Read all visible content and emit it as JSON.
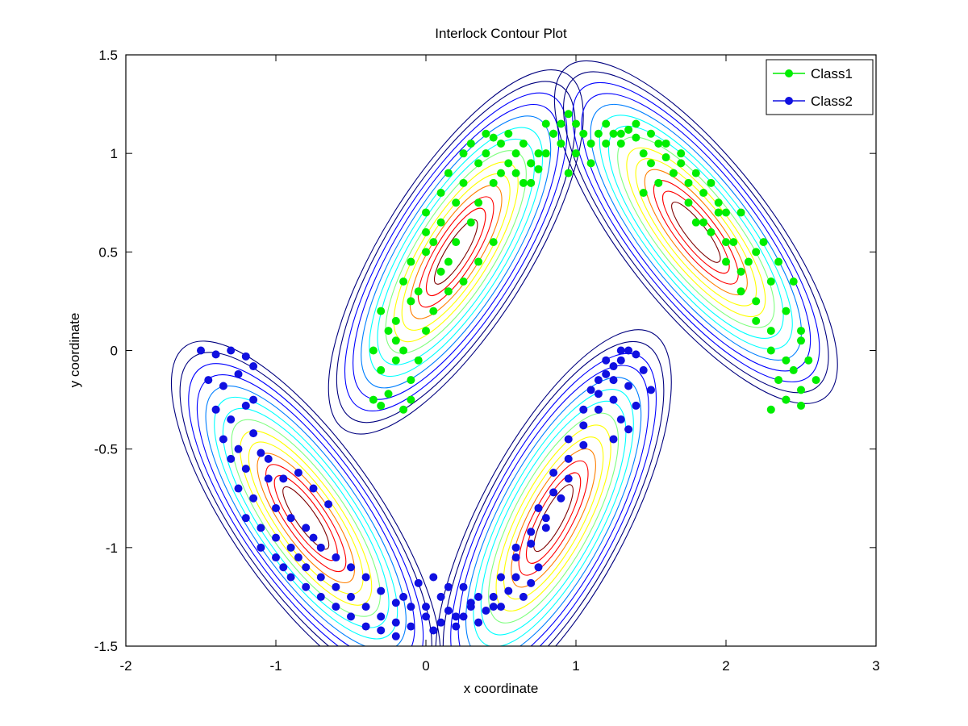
{
  "chart_data": {
    "type": "scatter",
    "title": "Interlock Contour Plot",
    "xlabel": "x coordinate",
    "ylabel": "y coordinate",
    "xlim": [
      -2,
      3
    ],
    "ylim": [
      -1.5,
      1.5
    ],
    "xticks": [
      -2,
      -1,
      0,
      1,
      2,
      3
    ],
    "yticks": [
      -1.5,
      -1,
      -0.5,
      0,
      0.5,
      1,
      1.5
    ],
    "xtick_labels": [
      "-2",
      "-1",
      "0",
      "1",
      "2",
      "3"
    ],
    "ytick_labels": [
      "-1.5",
      "-1",
      "-0.5",
      "0",
      "0.5",
      "1",
      "1.5"
    ],
    "grid": false,
    "legend_position": "top-right",
    "legend": [
      {
        "name": "Class1",
        "color": "#00ee00"
      },
      {
        "name": "Class2",
        "color": "#1010e0"
      }
    ],
    "contour_colormap": [
      "#00007f",
      "#0000ff",
      "#007fff",
      "#00ffff",
      "#7fff7f",
      "#ffff00",
      "#ff7f00",
      "#ff0000",
      "#7f0000"
    ],
    "contour_centers": [
      {
        "x": 0.2,
        "y": 0.5,
        "angle_deg": 58
      },
      {
        "x": 1.8,
        "y": 0.6,
        "angle_deg": -52
      },
      {
        "x": -0.8,
        "y": -0.85,
        "angle_deg": -55
      },
      {
        "x": 0.85,
        "y": -0.85,
        "angle_deg": 62
      }
    ],
    "series": [
      {
        "name": "Class1",
        "color": "#00ee00",
        "x": [
          -0.35,
          -0.3,
          -0.25,
          -0.15,
          -0.1,
          -0.3,
          -0.2,
          -0.1,
          -0.2,
          -0.35,
          -0.25,
          -0.15,
          -0.05,
          -0.3,
          -0.2,
          -0.1,
          0.0,
          -0.15,
          -0.05,
          0.05,
          -0.1,
          0.0,
          0.1,
          0.0,
          0.05,
          0.15,
          0.0,
          0.1,
          0.2,
          0.1,
          0.2,
          0.3,
          0.15,
          0.25,
          0.35,
          0.25,
          0.35,
          0.45,
          0.3,
          0.4,
          0.5,
          0.4,
          0.5,
          0.55,
          0.6,
          0.45,
          0.55,
          0.65,
          0.7,
          0.6,
          0.7,
          0.75,
          0.8,
          0.85,
          0.9,
          0.95,
          1.0,
          1.05,
          1.1,
          1.15,
          1.2,
          1.25,
          1.3,
          1.35,
          1.4,
          1.45,
          1.5,
          1.55,
          1.6,
          1.65,
          1.7,
          1.75,
          1.8,
          1.85,
          1.9,
          1.95,
          2.0,
          1.8,
          1.9,
          2.0,
          2.1,
          2.0,
          2.1,
          2.2,
          2.1,
          2.2,
          2.3,
          2.2,
          2.3,
          2.4,
          2.3,
          2.4,
          2.5,
          2.35,
          2.45,
          2.55,
          2.4,
          2.5,
          2.6,
          2.3,
          2.4,
          2.5,
          2.25,
          2.35,
          2.45,
          2.5,
          1.7,
          1.6,
          1.5,
          1.4,
          1.3,
          1.2,
          1.1,
          1.0,
          0.95,
          0.9,
          0.85,
          0.8,
          0.75,
          0.7,
          0.65,
          1.45,
          1.55,
          1.65,
          1.75,
          1.85,
          1.95,
          2.05,
          2.15,
          0.35,
          0.45,
          0.15,
          0.25
        ],
        "y": [
          -0.25,
          -0.28,
          -0.22,
          -0.3,
          -0.25,
          -0.1,
          -0.05,
          -0.15,
          0.05,
          0.0,
          0.1,
          0.0,
          -0.05,
          0.2,
          0.15,
          0.25,
          0.1,
          0.35,
          0.3,
          0.2,
          0.45,
          0.5,
          0.4,
          0.6,
          0.55,
          0.45,
          0.7,
          0.65,
          0.55,
          0.8,
          0.75,
          0.65,
          0.9,
          0.85,
          0.75,
          1.0,
          0.95,
          0.85,
          1.05,
          1.0,
          0.9,
          1.1,
          1.05,
          0.95,
          1.0,
          1.08,
          1.1,
          1.05,
          0.95,
          0.9,
          0.85,
          0.92,
          1.0,
          1.1,
          1.15,
          1.2,
          1.15,
          1.1,
          1.05,
          1.1,
          1.15,
          1.1,
          1.05,
          1.12,
          1.08,
          1.0,
          0.95,
          1.05,
          0.98,
          0.9,
          0.95,
          0.85,
          0.9,
          0.8,
          0.85,
          0.75,
          0.7,
          0.65,
          0.6,
          0.55,
          0.7,
          0.45,
          0.4,
          0.5,
          0.3,
          0.25,
          0.35,
          0.15,
          0.1,
          0.2,
          0.0,
          -0.05,
          0.05,
          -0.15,
          -0.1,
          -0.05,
          -0.25,
          -0.2,
          -0.15,
          -0.3,
          -0.25,
          -0.28,
          0.55,
          0.45,
          0.35,
          0.1,
          1.0,
          1.05,
          1.1,
          1.15,
          1.1,
          1.05,
          0.95,
          1.0,
          0.9,
          1.05,
          1.1,
          1.15,
          1.0,
          0.95,
          0.85,
          0.8,
          0.85,
          0.9,
          0.75,
          0.65,
          0.7,
          0.55,
          0.45,
          0.45,
          0.55,
          0.3,
          0.35
        ]
      },
      {
        "name": "Class2",
        "color": "#1010e0",
        "x": [
          -1.5,
          -1.4,
          -1.3,
          -1.2,
          -1.15,
          -1.45,
          -1.35,
          -1.25,
          -1.15,
          -1.4,
          -1.3,
          -1.2,
          -1.35,
          -1.25,
          -1.15,
          -1.3,
          -1.2,
          -1.1,
          -1.25,
          -1.15,
          -1.05,
          -1.2,
          -1.1,
          -1.0,
          -1.1,
          -1.0,
          -0.9,
          -1.0,
          -0.9,
          -0.8,
          -0.95,
          -0.85,
          -0.75,
          -0.9,
          -0.8,
          -0.7,
          -0.8,
          -0.7,
          -0.6,
          -0.7,
          -0.6,
          -0.5,
          -0.6,
          -0.5,
          -0.4,
          -0.5,
          -0.4,
          -0.3,
          -0.4,
          -0.3,
          -0.2,
          -0.3,
          -0.2,
          -0.1,
          -0.2,
          -0.1,
          0.0,
          0.05,
          0.1,
          0.15,
          0.2,
          0.25,
          0.3,
          0.35,
          0.4,
          0.45,
          0.5,
          0.55,
          0.6,
          0.65,
          0.7,
          0.75,
          0.5,
          0.6,
          0.7,
          0.8,
          0.6,
          0.7,
          0.8,
          0.9,
          0.75,
          0.85,
          0.95,
          0.85,
          0.95,
          1.05,
          0.95,
          1.05,
          1.15,
          1.05,
          1.15,
          1.25,
          1.1,
          1.2,
          1.3,
          1.15,
          1.25,
          1.35,
          1.2,
          1.3,
          1.4,
          1.25,
          1.35,
          1.45,
          1.3,
          1.4,
          1.5,
          1.25,
          1.35,
          0.15,
          0.05,
          -0.05,
          -0.15,
          0.25,
          0.35,
          0.45,
          -0.85,
          -0.75,
          -0.65,
          -1.05,
          -0.95,
          0.0,
          0.1,
          0.2,
          0.3
        ],
        "y": [
          0.0,
          -0.02,
          0.0,
          -0.03,
          -0.08,
          -0.15,
          -0.18,
          -0.12,
          -0.25,
          -0.3,
          -0.35,
          -0.28,
          -0.45,
          -0.5,
          -0.42,
          -0.55,
          -0.6,
          -0.52,
          -0.7,
          -0.75,
          -0.65,
          -0.85,
          -0.9,
          -0.8,
          -1.0,
          -0.95,
          -0.85,
          -1.05,
          -1.0,
          -0.9,
          -1.1,
          -1.05,
          -0.95,
          -1.15,
          -1.1,
          -1.0,
          -1.2,
          -1.15,
          -1.05,
          -1.25,
          -1.2,
          -1.1,
          -1.3,
          -1.25,
          -1.15,
          -1.35,
          -1.3,
          -1.22,
          -1.4,
          -1.35,
          -1.28,
          -1.42,
          -1.38,
          -1.3,
          -1.45,
          -1.4,
          -1.35,
          -1.42,
          -1.38,
          -1.32,
          -1.4,
          -1.35,
          -1.28,
          -1.38,
          -1.32,
          -1.25,
          -1.3,
          -1.22,
          -1.15,
          -1.25,
          -1.18,
          -1.1,
          -1.15,
          -1.05,
          -0.98,
          -0.9,
          -1.0,
          -0.92,
          -0.85,
          -0.75,
          -0.8,
          -0.72,
          -0.65,
          -0.62,
          -0.55,
          -0.48,
          -0.45,
          -0.38,
          -0.3,
          -0.3,
          -0.22,
          -0.15,
          -0.2,
          -0.12,
          -0.05,
          -0.15,
          -0.08,
          0.0,
          -0.05,
          0.0,
          -0.02,
          -0.25,
          -0.18,
          -0.1,
          -0.35,
          -0.28,
          -0.2,
          -0.45,
          -0.4,
          -1.2,
          -1.15,
          -1.18,
          -1.25,
          -1.2,
          -1.25,
          -1.3,
          -0.62,
          -0.7,
          -0.78,
          -0.55,
          -0.65,
          -1.3,
          -1.25,
          -1.35,
          -1.3
        ]
      }
    ]
  }
}
